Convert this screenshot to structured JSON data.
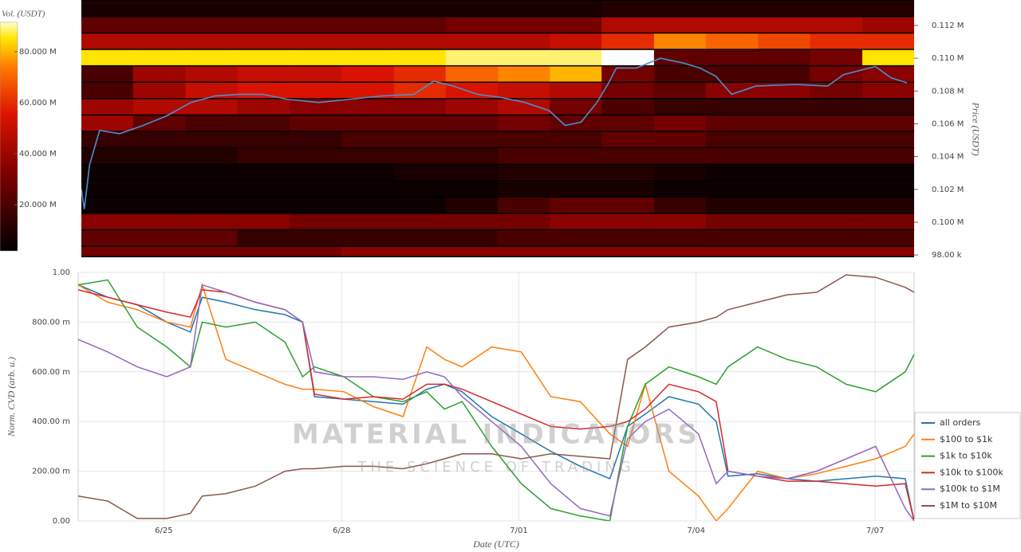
{
  "chart_data": [
    {
      "type": "heatmap",
      "colorbar_label": "Vol. (USDT)",
      "y_label": "Price (USDT)",
      "clim": [
        1.9,
        91.5
      ],
      "cticks": [
        {
          "value": 20,
          "label": "20.000 M"
        },
        {
          "value": 40,
          "label": "40.000 M"
        },
        {
          "value": 60,
          "label": "60.000 M"
        },
        {
          "value": 80,
          "label": "80.000 M"
        }
      ],
      "xlim": [
        0,
        14.15
      ],
      "ylim": [
        97860,
        113550
      ],
      "yticks": [
        {
          "value": 98000,
          "label": "98.00 k"
        },
        {
          "value": 100000,
          "label": "0.100 M"
        },
        {
          "value": 102000,
          "label": "0.102 M"
        },
        {
          "value": 104000,
          "label": "0.104 M"
        },
        {
          "value": 106000,
          "label": "0.106 M"
        },
        {
          "value": 108000,
          "label": "0.108 M"
        },
        {
          "value": 110000,
          "label": "0.110 M"
        },
        {
          "value": 112000,
          "label": "0.112 M"
        }
      ],
      "x_bins": [
        0,
        0.88,
        1.77,
        2.65,
        3.54,
        4.42,
        5.31,
        6.19,
        7.08,
        7.96,
        8.84,
        9.73,
        10.61,
        11.5,
        12.38,
        13.27,
        14.15
      ],
      "price_levels": [
        98000,
        99000,
        100000,
        101000,
        102000,
        103000,
        104000,
        105000,
        106000,
        107000,
        108000,
        109000,
        110000,
        111000,
        112000,
        113000
      ],
      "z": [
        [
          30,
          30,
          30,
          30,
          30,
          35,
          35,
          35,
          35,
          35,
          35,
          35,
          35,
          35,
          35,
          35
        ],
        [
          25,
          25,
          25,
          15,
          15,
          15,
          15,
          15,
          20,
          20,
          20,
          20,
          20,
          20,
          20,
          20
        ],
        [
          35,
          35,
          35,
          35,
          30,
          30,
          30,
          30,
          30,
          35,
          35,
          35,
          30,
          30,
          30,
          30
        ],
        [
          5,
          5,
          5,
          5,
          5,
          5,
          5,
          10,
          20,
          25,
          25,
          15,
          10,
          10,
          10,
          10
        ],
        [
          5,
          5,
          5,
          5,
          5,
          5,
          5,
          5,
          8,
          8,
          8,
          5,
          5,
          5,
          5,
          5
        ],
        [
          5,
          5,
          5,
          5,
          5,
          5,
          8,
          8,
          10,
          10,
          10,
          8,
          5,
          5,
          5,
          5
        ],
        [
          10,
          10,
          10,
          15,
          15,
          15,
          15,
          15,
          20,
          20,
          20,
          20,
          20,
          20,
          20,
          20
        ],
        [
          15,
          15,
          15,
          15,
          15,
          20,
          20,
          20,
          20,
          20,
          25,
          25,
          20,
          20,
          20,
          20
        ],
        [
          40,
          25,
          20,
          20,
          25,
          25,
          25,
          25,
          30,
          25,
          25,
          30,
          25,
          25,
          25,
          25
        ],
        [
          40,
          45,
          45,
          40,
          35,
          35,
          35,
          40,
          45,
          30,
          20,
          15,
          15,
          15,
          15,
          15
        ],
        [
          20,
          40,
          50,
          55,
          55,
          55,
          60,
          55,
          50,
          45,
          30,
          25,
          35,
          35,
          30,
          35
        ],
        [
          20,
          40,
          45,
          50,
          50,
          55,
          60,
          70,
          75,
          80,
          30,
          20,
          20,
          20,
          30,
          35
        ],
        [
          85,
          85,
          85,
          85,
          85,
          85,
          85,
          88,
          88,
          88,
          95,
          25,
          25,
          25,
          30,
          85
        ],
        [
          45,
          45,
          45,
          45,
          45,
          45,
          45,
          45,
          45,
          50,
          60,
          75,
          70,
          65,
          60,
          60
        ],
        [
          25,
          25,
          25,
          25,
          25,
          25,
          25,
          30,
          30,
          30,
          45,
          45,
          45,
          45,
          45,
          40
        ],
        [
          8,
          8,
          8,
          8,
          8,
          8,
          8,
          8,
          8,
          8,
          10,
          10,
          10,
          10,
          10,
          10
        ]
      ],
      "price": {
        "color": "#4a90d0",
        "x": [
          0,
          0.05,
          0.14,
          0.31,
          0.65,
          1.05,
          1.46,
          1.86,
          2.27,
          2.68,
          3.08,
          3.49,
          4.03,
          4.57,
          5.11,
          5.65,
          5.99,
          6.32,
          6.73,
          7.14,
          7.54,
          7.95,
          8.22,
          8.49,
          8.76,
          8.96,
          9.09,
          9.43,
          9.84,
          10.24,
          10.51,
          10.78,
          11.05,
          11.46,
          12.14,
          12.68,
          12.95,
          13.49,
          13.76,
          14.03
        ],
        "values": [
          102000,
          100800,
          103500,
          105600,
          105400,
          105900,
          106500,
          107300,
          107700,
          107800,
          107800,
          107500,
          107300,
          107500,
          107700,
          107800,
          108600,
          108300,
          107800,
          107600,
          107300,
          106800,
          105900,
          106100,
          107300,
          108500,
          109400,
          109400,
          110000,
          109700,
          109400,
          108900,
          107800,
          108300,
          108400,
          108300,
          109000,
          109500,
          108800,
          108500
        ]
      }
    },
    {
      "type": "line",
      "y_label": "Norm. CVD (arb. u.)",
      "x_label": "Date (UTC)",
      "watermark": {
        "title": "MATERIAL INDICATORS",
        "subtitle": "THE SCIENCE OF TRADING"
      },
      "grid": true,
      "legend": "right",
      "xlim": [
        0,
        14.15
      ],
      "ylim": [
        0,
        1
      ],
      "xticks": [
        {
          "value": 1.45,
          "label": "6/25"
        },
        {
          "value": 4.46,
          "label": "6/28"
        },
        {
          "value": 7.46,
          "label": "7/01"
        },
        {
          "value": 10.46,
          "label": "7/04"
        },
        {
          "value": 13.49,
          "label": "7/07"
        }
      ],
      "yticks": [
        {
          "value": 0,
          "label": "0.00"
        },
        {
          "value": 0.2,
          "label": "200.00 m"
        },
        {
          "value": 0.4,
          "label": "400.00 m"
        },
        {
          "value": 0.6,
          "label": "600.00 m"
        },
        {
          "value": 0.8,
          "label": "800.00 m"
        },
        {
          "value": 1,
          "label": "1.00"
        }
      ],
      "x": [
        0,
        0.5,
        1.0,
        1.5,
        1.9,
        2.1,
        2.5,
        3.0,
        3.5,
        3.8,
        4.0,
        4.5,
        5.0,
        5.5,
        5.9,
        6.2,
        6.5,
        7.0,
        7.5,
        8.0,
        8.5,
        9.0,
        9.3,
        9.6,
        10.0,
        10.5,
        10.8,
        11.0,
        11.5,
        12.0,
        12.5,
        13.0,
        13.5,
        14.0,
        14.15
      ],
      "series": [
        {
          "name": "all orders",
          "color": "#1f77b4",
          "values": [
            0.95,
            0.9,
            0.87,
            0.8,
            0.76,
            0.9,
            0.88,
            0.85,
            0.83,
            0.8,
            0.5,
            0.49,
            0.48,
            0.47,
            0.53,
            0.55,
            0.52,
            0.42,
            0.35,
            0.28,
            0.22,
            0.17,
            0.38,
            0.43,
            0.5,
            0.47,
            0.4,
            0.18,
            0.19,
            0.17,
            0.16,
            0.17,
            0.18,
            0.17,
            0.0
          ]
        },
        {
          "name": "$100 to $1k",
          "color": "#ff7f0e",
          "values": [
            0.95,
            0.88,
            0.85,
            0.8,
            0.78,
            0.95,
            0.65,
            0.6,
            0.55,
            0.53,
            0.53,
            0.52,
            0.46,
            0.42,
            0.7,
            0.65,
            0.62,
            0.7,
            0.68,
            0.5,
            0.48,
            0.35,
            0.3,
            0.55,
            0.2,
            0.1,
            0.0,
            0.05,
            0.2,
            0.17,
            0.19,
            0.22,
            0.25,
            0.3,
            0.35
          ]
        },
        {
          "name": "$1k to $10k",
          "color": "#2ca02c",
          "values": [
            0.95,
            0.97,
            0.78,
            0.7,
            0.62,
            0.8,
            0.78,
            0.8,
            0.72,
            0.58,
            0.62,
            0.58,
            0.5,
            0.48,
            0.52,
            0.45,
            0.48,
            0.3,
            0.15,
            0.05,
            0.02,
            0.0,
            0.38,
            0.55,
            0.62,
            0.58,
            0.55,
            0.62,
            0.7,
            0.65,
            0.62,
            0.55,
            0.52,
            0.6,
            0.67
          ]
        },
        {
          "name": "$10k to $100k",
          "color": "#d62728",
          "values": [
            0.93,
            0.9,
            0.87,
            0.84,
            0.82,
            0.93,
            0.92,
            0.88,
            0.85,
            0.8,
            0.51,
            0.49,
            0.5,
            0.49,
            0.55,
            0.55,
            0.53,
            0.48,
            0.43,
            0.38,
            0.37,
            0.38,
            0.4,
            0.45,
            0.55,
            0.52,
            0.48,
            0.2,
            0.18,
            0.16,
            0.16,
            0.15,
            0.14,
            0.15,
            0.0
          ]
        },
        {
          "name": "$100k to $1M",
          "color": "#9467bd",
          "values": [
            0.73,
            0.68,
            0.62,
            0.58,
            0.62,
            0.95,
            0.92,
            0.88,
            0.85,
            0.8,
            0.6,
            0.58,
            0.58,
            0.57,
            0.6,
            0.58,
            0.5,
            0.4,
            0.3,
            0.15,
            0.05,
            0.02,
            0.33,
            0.4,
            0.45,
            0.35,
            0.15,
            0.2,
            0.18,
            0.17,
            0.2,
            0.25,
            0.3,
            0.05,
            0.0
          ]
        },
        {
          "name": "$1M to $10M",
          "color": "#8c564b",
          "values": [
            0.1,
            0.08,
            0.01,
            0.01,
            0.03,
            0.1,
            0.11,
            0.14,
            0.2,
            0.21,
            0.21,
            0.22,
            0.22,
            0.21,
            0.23,
            0.25,
            0.27,
            0.27,
            0.25,
            0.27,
            0.26,
            0.25,
            0.65,
            0.7,
            0.78,
            0.8,
            0.82,
            0.85,
            0.88,
            0.91,
            0.92,
            0.99,
            0.98,
            0.94,
            0.92
          ]
        }
      ]
    }
  ]
}
